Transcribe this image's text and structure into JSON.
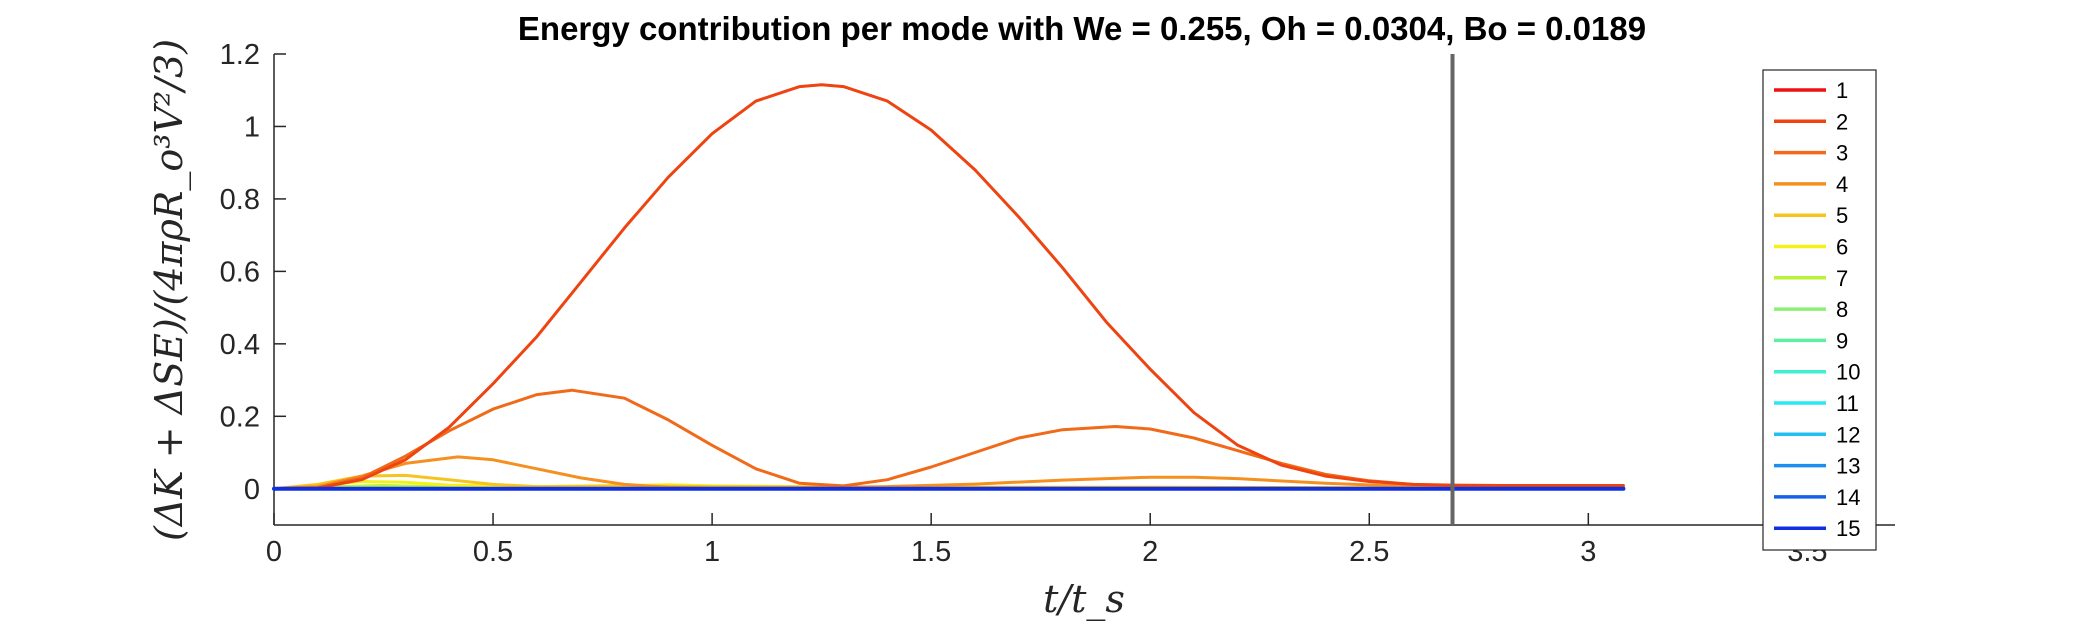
{
  "chart_data": {
    "type": "line",
    "title": "Energy contribution per mode with We = 0.255, Oh = 0.0304, Bo = 0.0189",
    "xlabel": "t/t_s",
    "ylabel": "(ΔK + ΔSE)/(4πρR_o³V²/3)",
    "xlim": [
      0,
      3.7
    ],
    "ylim": [
      -0.1,
      1.2
    ],
    "xticks": [
      "0",
      "0.5",
      "1",
      "1.5",
      "2",
      "2.5",
      "3",
      "3.5"
    ],
    "yticks": [
      "0",
      "0.2",
      "0.4",
      "0.6",
      "0.8",
      "1",
      "1.2"
    ],
    "grid": false,
    "legend_position": "right",
    "vertical_line_x": 2.69,
    "vertical_line_color": "#666666",
    "series": [
      {
        "name": "1",
        "color": "#ee1111",
        "x": [
          0,
          3.08
        ],
        "y": [
          0,
          0
        ]
      },
      {
        "name": "2",
        "color": "#ee4411",
        "x": [
          0,
          0.1,
          0.2,
          0.3,
          0.4,
          0.5,
          0.6,
          0.7,
          0.8,
          0.9,
          1.0,
          1.1,
          1.2,
          1.25,
          1.3,
          1.4,
          1.5,
          1.6,
          1.7,
          1.8,
          1.9,
          2.0,
          2.1,
          2.2,
          2.3,
          2.4,
          2.5,
          2.6,
          2.69,
          2.8,
          2.9,
          3.0,
          3.08
        ],
        "y": [
          0,
          0.002,
          0.025,
          0.08,
          0.17,
          0.29,
          0.42,
          0.57,
          0.72,
          0.86,
          0.98,
          1.07,
          1.11,
          1.115,
          1.11,
          1.07,
          0.99,
          0.88,
          0.75,
          0.61,
          0.46,
          0.33,
          0.21,
          0.12,
          0.065,
          0.035,
          0.02,
          0.012,
          0.01,
          0.009,
          0.009,
          0.009,
          0.009
        ]
      },
      {
        "name": "3",
        "color": "#f06a1a",
        "x": [
          0,
          0.1,
          0.2,
          0.3,
          0.4,
          0.5,
          0.6,
          0.68,
          0.8,
          0.9,
          1.0,
          1.1,
          1.2,
          1.3,
          1.4,
          1.5,
          1.6,
          1.7,
          1.8,
          1.92,
          2.0,
          2.1,
          2.2,
          2.3,
          2.4,
          2.5,
          2.6,
          2.7,
          2.8,
          2.9,
          3.0,
          3.08
        ],
        "y": [
          0,
          0.003,
          0.03,
          0.09,
          0.16,
          0.22,
          0.26,
          0.272,
          0.25,
          0.19,
          0.12,
          0.055,
          0.015,
          0.008,
          0.025,
          0.06,
          0.1,
          0.14,
          0.163,
          0.172,
          0.165,
          0.14,
          0.105,
          0.07,
          0.04,
          0.022,
          0.012,
          0.008,
          0.006,
          0.005,
          0.005,
          0.005
        ]
      },
      {
        "name": "4",
        "color": "#f59020",
        "x": [
          0,
          0.1,
          0.2,
          0.3,
          0.42,
          0.5,
          0.6,
          0.7,
          0.8,
          0.9,
          1.0,
          1.2,
          1.4,
          1.6,
          1.8,
          2.0,
          2.1,
          2.2,
          2.4,
          2.6,
          2.8,
          3.08
        ],
        "y": [
          0,
          0.006,
          0.035,
          0.07,
          0.088,
          0.08,
          0.055,
          0.03,
          0.012,
          0.004,
          0.002,
          0.003,
          0.006,
          0.013,
          0.024,
          0.032,
          0.032,
          0.028,
          0.015,
          0.006,
          0.003,
          0.002
        ]
      },
      {
        "name": "5",
        "color": "#f7c41f",
        "x": [
          0,
          0.1,
          0.2,
          0.3,
          0.4,
          0.5,
          0.6,
          0.8,
          1.0,
          1.2,
          1.5,
          2.0,
          2.5,
          3.08
        ],
        "y": [
          0,
          0.012,
          0.035,
          0.037,
          0.025,
          0.012,
          0.006,
          0.008,
          0.006,
          0.005,
          0.004,
          0.004,
          0.003,
          0.002
        ]
      },
      {
        "name": "6",
        "color": "#f2f21a",
        "x": [
          0,
          0.1,
          0.2,
          0.3,
          0.4,
          0.6,
          0.8,
          0.9,
          1.0,
          1.2,
          1.5,
          2.0,
          3.08
        ],
        "y": [
          0,
          0.01,
          0.02,
          0.018,
          0.01,
          0.006,
          0.009,
          0.011,
          0.008,
          0.006,
          0.004,
          0.003,
          0.002
        ]
      },
      {
        "name": "7",
        "color": "#b8f23a",
        "x": [
          0,
          0.15,
          0.25,
          0.4,
          0.6,
          1.0,
          3.08
        ],
        "y": [
          0,
          0.006,
          0.009,
          0.005,
          0.003,
          0.003,
          0.001
        ]
      },
      {
        "name": "8",
        "color": "#8cf076",
        "x": [
          0,
          0.2,
          0.3,
          0.5,
          3.08
        ],
        "y": [
          0,
          0.004,
          0.005,
          0.002,
          0.001
        ]
      },
      {
        "name": "9",
        "color": "#5cf0a0",
        "x": [
          0,
          3.08
        ],
        "y": [
          0,
          0.001
        ]
      },
      {
        "name": "10",
        "color": "#3ef0cc",
        "x": [
          0,
          3.08
        ],
        "y": [
          0,
          0
        ]
      },
      {
        "name": "11",
        "color": "#2ae8f0",
        "x": [
          0,
          3.08
        ],
        "y": [
          0,
          0
        ]
      },
      {
        "name": "12",
        "color": "#22c0f0",
        "x": [
          0,
          3.08
        ],
        "y": [
          0,
          0
        ]
      },
      {
        "name": "13",
        "color": "#1c8ef0",
        "x": [
          0,
          3.08
        ],
        "y": [
          0,
          0
        ]
      },
      {
        "name": "14",
        "color": "#1660ea",
        "x": [
          0,
          3.08
        ],
        "y": [
          0,
          0
        ]
      },
      {
        "name": "15",
        "color": "#1030e0",
        "x": [
          0,
          3.08
        ],
        "y": [
          0,
          0
        ]
      }
    ]
  }
}
